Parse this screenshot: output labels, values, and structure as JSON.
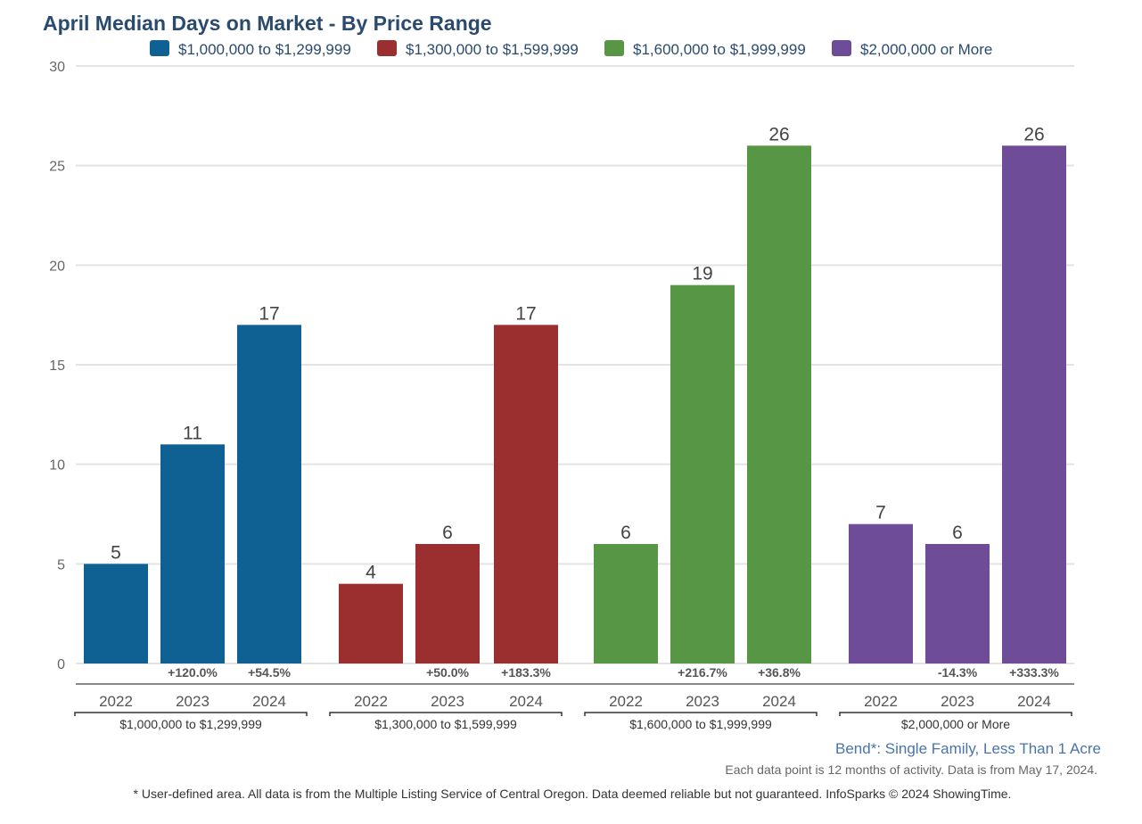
{
  "chart_data": {
    "type": "bar",
    "title": "April Median Days on Market - By Price Range",
    "ylim": [
      0,
      30
    ],
    "yticks": [
      0,
      5,
      10,
      15,
      20,
      25,
      30
    ],
    "grid": true,
    "legend_placement": "top",
    "categories": [
      "2022",
      "2023",
      "2024"
    ],
    "series": [
      {
        "name": "$1,000,000 to $1,299,999",
        "color": "#0f6193",
        "values": [
          5,
          11,
          17
        ],
        "changes": [
          "",
          "+120.0%",
          "+54.5%"
        ]
      },
      {
        "name": "$1,300,000 to $1,599,999",
        "color": "#9b2f30",
        "values": [
          4,
          6,
          17
        ],
        "changes": [
          "",
          "+50.0%",
          "+183.3%"
        ]
      },
      {
        "name": "$1,600,000 to $1,999,999",
        "color": "#569645",
        "values": [
          6,
          19,
          26
        ],
        "changes": [
          "",
          "+216.7%",
          "+36.8%"
        ]
      },
      {
        "name": "$2,000,000 or More",
        "color": "#6f4c98",
        "values": [
          7,
          6,
          26
        ],
        "changes": [
          "",
          "-14.3%",
          "+333.3%"
        ]
      }
    ]
  },
  "subtitle": "Bend*: Single Family, Less Than 1 Acre",
  "note": "Each data point is 12 months of activity. Data is from May 17, 2024.",
  "footnote": "* User-defined area. All data is from the Multiple Listing Service of Central Oregon. Data deemed reliable but not guaranteed. InfoSparks © 2024 ShowingTime."
}
